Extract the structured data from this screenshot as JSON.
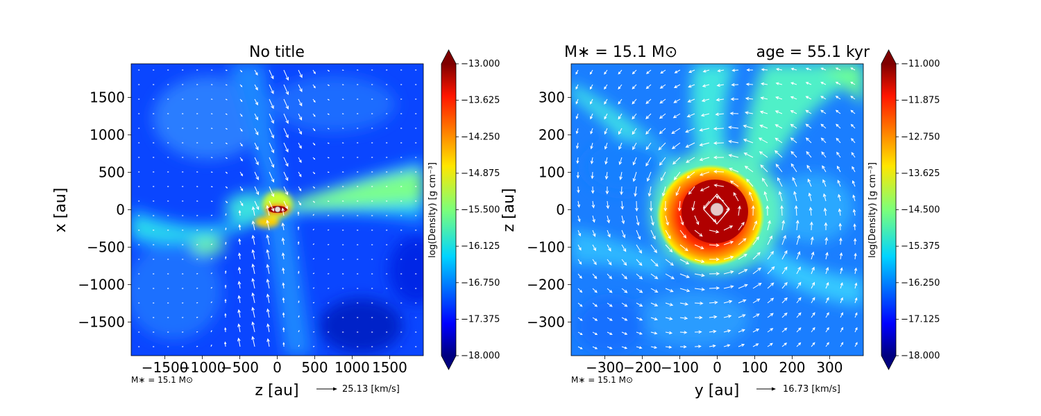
{
  "chart_data": [
    {
      "type": "heatmap",
      "title": "No title",
      "xlabel": "z [au]",
      "ylabel": "x [au]",
      "xlim": [
        -1950,
        1950
      ],
      "ylim": [
        -1950,
        1950
      ],
      "xticks": [
        -1500,
        -1000,
        -500,
        0,
        500,
        1000,
        1500
      ],
      "xtick_labels": [
        "−1500",
        "−1000",
        "−500",
        "0",
        "500",
        "1000",
        "1500"
      ],
      "yticks": [
        1500,
        1000,
        500,
        0,
        -500,
        -1000,
        -1500
      ],
      "ytick_labels": [
        "1500",
        "1000",
        "500",
        "0",
        "−500",
        "−1000",
        "−1500"
      ],
      "colorbar": {
        "label": "log(Density) [g cm⁻³]",
        "min": -18.0,
        "max": -13.0,
        "ticks": [
          -13.0,
          -13.625,
          -14.25,
          -14.875,
          -15.5,
          -16.125,
          -16.75,
          -17.375,
          -18.0
        ],
        "tick_labels": [
          "−13.000",
          "−13.625",
          "−14.250",
          "−14.875",
          "−15.500",
          "−16.125",
          "−16.750",
          "−17.375",
          "−18.000"
        ],
        "colormap": "jet"
      },
      "annotations": {
        "mass_note": "M∗ = 15.1 M⊙",
        "arrow_key_label": "25.13 [km/s]"
      },
      "features": {
        "center_star": [
          0,
          0
        ],
        "vector_field": "white arrows, strong vertical infall along z≈0"
      }
    },
    {
      "type": "heatmap",
      "title_left": "M∗ = 15.1 M⊙",
      "title_right": "age = 55.1 kyr",
      "xlabel": "y [au]",
      "ylabel": "z [au]",
      "xlim": [
        -390,
        390
      ],
      "ylim": [
        -390,
        390
      ],
      "xticks": [
        -300,
        -200,
        -100,
        0,
        100,
        200,
        300
      ],
      "xtick_labels": [
        "−300",
        "−200",
        "−100",
        "0",
        "100",
        "200",
        "300"
      ],
      "yticks": [
        300,
        200,
        100,
        0,
        -100,
        -200,
        -300
      ],
      "ytick_labels": [
        "300",
        "200",
        "100",
        "0",
        "−100",
        "−200",
        "−300"
      ],
      "colorbar": {
        "label": "log(Density) [g cm⁻³]",
        "min": -18.0,
        "max": -11.0,
        "ticks": [
          -11.0,
          -11.875,
          -12.75,
          -13.625,
          -14.5,
          -15.375,
          -16.25,
          -17.125,
          -18.0
        ],
        "tick_labels": [
          "−11.000",
          "−11.875",
          "−12.750",
          "−13.625",
          "−14.500",
          "−15.375",
          "−16.250",
          "−17.125",
          "−18.000"
        ],
        "colormap": "jet"
      },
      "annotations": {
        "mass_note": "M∗ = 15.1 M⊙",
        "arrow_key_label": "16.73 [km/s]"
      },
      "features": {
        "center_star": [
          0,
          0
        ],
        "disk_radius": 120,
        "vector_field": "white arrows, rotating disk around center"
      }
    }
  ],
  "colors": {
    "arrows": "#ffffff",
    "star": "#e8c8c8",
    "background": "#ffffff"
  }
}
